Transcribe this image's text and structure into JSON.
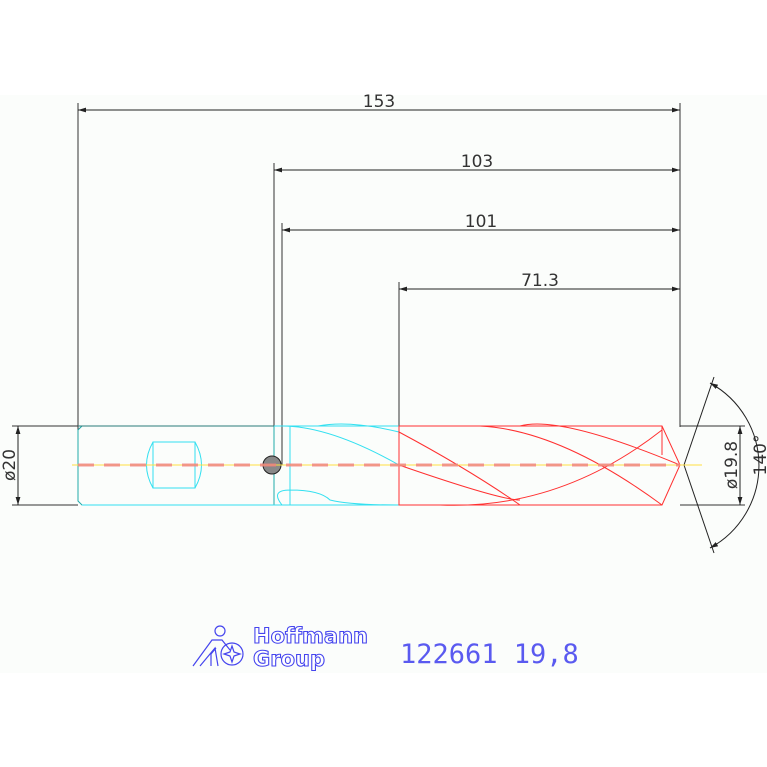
{
  "drawing": {
    "dimensions": {
      "overall_length": "153",
      "length_a": "103",
      "length_b": "101",
      "flute_length": "71.3",
      "shank_diameter": "ø20",
      "drill_diameter": "ø19.8",
      "point_angle": "140°"
    },
    "colors": {
      "shank": "#33e0f0",
      "cutting": "#ff3030",
      "dimension": "#222222",
      "logo": "#4545ee"
    }
  },
  "title_block": {
    "logo_line1": "Hoffmann",
    "logo_line2": "Group",
    "part_number": "122661 19,8"
  }
}
